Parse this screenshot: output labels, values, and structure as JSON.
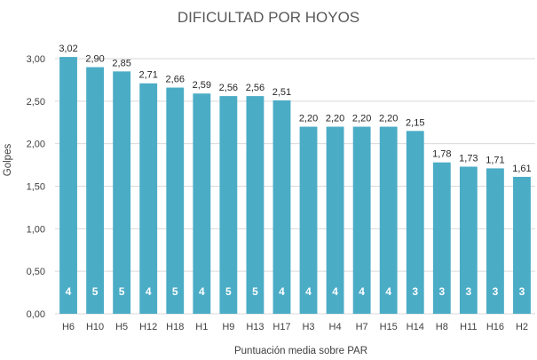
{
  "chart_data": {
    "type": "bar",
    "title": "DIFICULTAD POR HOYOS",
    "xlabel": "Puntuación media sobre PAR",
    "ylabel": "Golpes",
    "categories": [
      "H6",
      "H10",
      "H5",
      "H12",
      "H18",
      "H1",
      "H9",
      "H13",
      "H17",
      "H3",
      "H4",
      "H7",
      "H15",
      "H14",
      "H8",
      "H11",
      "H16",
      "H2"
    ],
    "series": [
      {
        "values": [
          3.02,
          2.9,
          2.85,
          2.71,
          2.66,
          2.59,
          2.56,
          2.56,
          2.51,
          2.2,
          2.2,
          2.2,
          2.2,
          2.15,
          1.78,
          1.73,
          1.71,
          1.61
        ],
        "value_labels": [
          "3,02",
          "2,90",
          "2,85",
          "2,71",
          "2,66",
          "2,59",
          "2,56",
          "2,56",
          "2,51",
          "2,20",
          "2,20",
          "2,20",
          "2,20",
          "2,15",
          "1,78",
          "1,73",
          "1,71",
          "1,61"
        ],
        "par_labels": [
          "4",
          "5",
          "5",
          "4",
          "5",
          "4",
          "5",
          "5",
          "4",
          "4",
          "4",
          "4",
          "4",
          "3",
          "3",
          "3",
          "3",
          "3"
        ]
      }
    ],
    "ylim": [
      0,
      3.0
    ],
    "yticks": [
      0,
      0.5,
      1.0,
      1.5,
      2.0,
      2.5,
      3.0
    ],
    "ytick_labels": [
      "0,00",
      "0,50",
      "1,00",
      "1,50",
      "2,00",
      "2,50",
      "3,00"
    ],
    "grid": true,
    "legend": "none",
    "colors": {
      "bar": "#4bacc6",
      "grid": "#d9d9d9"
    }
  }
}
